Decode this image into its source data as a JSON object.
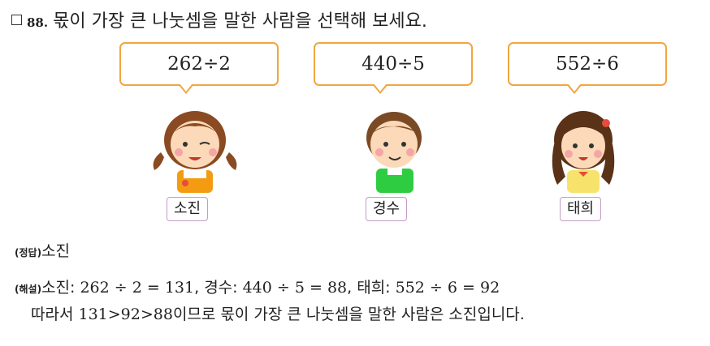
{
  "question": {
    "number": "88.",
    "text": "몫이 가장 큰 나눗셈을 말한 사람을 선택해 보세요."
  },
  "people": [
    {
      "expression": "262÷2",
      "name": "소진"
    },
    {
      "expression": "440÷5",
      "name": "경수"
    },
    {
      "expression": "552÷6",
      "name": "태희"
    }
  ],
  "answer": {
    "label": "(정답)",
    "value": "소진"
  },
  "explanation": {
    "label": "(해설)",
    "p1_name": "소진: ",
    "p1_expr": "262 ÷ 2 = 131",
    "sep1": ", ",
    "p2_name": "경수: ",
    "p2_expr": "440 ÷ 5 = 88",
    "sep2": ", ",
    "p3_name": "태희: ",
    "p3_expr": "552 ÷ 6 = 92",
    "conclusion_pre": "따라서 ",
    "conclusion_math": "131>92>88",
    "conclusion_post": "이므로 몫이 가장 큰 나눗셈을 말한 사람은 소진입니다."
  },
  "colors": {
    "bubble_border": "#f0a640",
    "nametag_border": "#c59bc9"
  }
}
